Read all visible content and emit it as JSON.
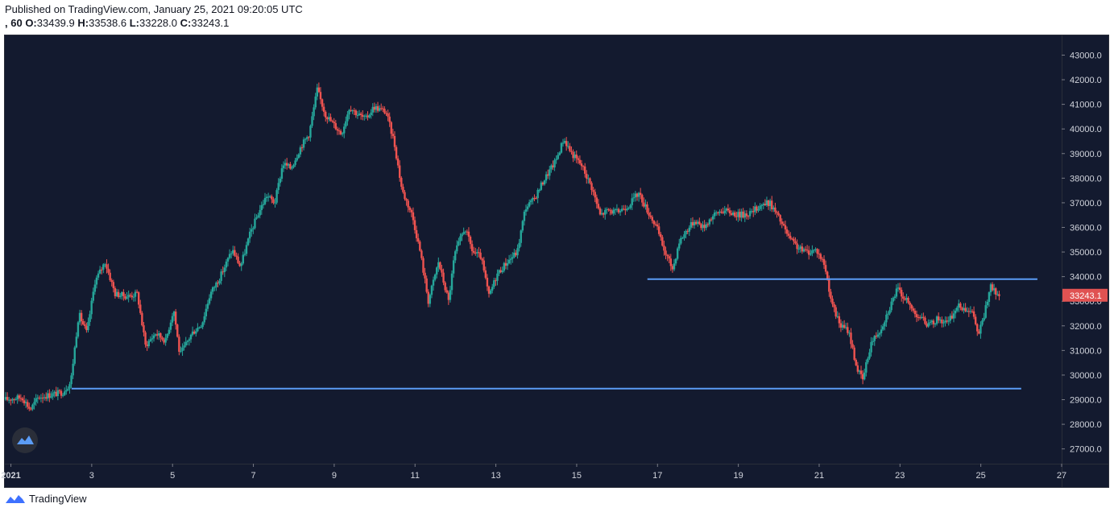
{
  "header": {
    "published": "Published on TradingView.com, January 25, 2021 09:20:05 UTC",
    "interval": ", 60",
    "o_label": "O:",
    "o_value": "33439.9",
    "h_label": "H:",
    "h_value": "33538.6",
    "l_label": "L:",
    "l_value": "33228.0",
    "c_label": "C:",
    "c_value": "33243.1"
  },
  "footer": {
    "brand": "TradingView",
    "logo_icon": "tradingview-logo-icon"
  },
  "watermark_icon": "tradingview-cloud-icon",
  "colors": {
    "background": "#131a2f",
    "up": "#26a69a",
    "down": "#ef5350",
    "support_line": "#5b9cf6",
    "axis_text": "#d1d4dc",
    "price_tag": "#e05252"
  },
  "chart_data": {
    "type": "candlestick",
    "timeframe": "60",
    "x_axis": {
      "ticks": [
        "2021",
        "3",
        "5",
        "7",
        "9",
        "11",
        "13",
        "15",
        "17",
        "19",
        "21",
        "23",
        "25",
        "27"
      ],
      "range_days": [
        0.85,
        27
      ]
    },
    "y_axis": {
      "ticks": [
        "27000.0",
        "28000.0",
        "29000.0",
        "30000.0",
        "31000.0",
        "32000.0",
        "33000.0",
        "34000.0",
        "35000.0",
        "36000.0",
        "37000.0",
        "38000.0",
        "39000.0",
        "40000.0",
        "41000.0",
        "42000.0",
        "43000.0"
      ],
      "range": [
        26400,
        43800
      ]
    },
    "last_price": "33243.1",
    "path_points": [
      [
        0.85,
        29000
      ],
      [
        1.3,
        29100
      ],
      [
        1.5,
        28600
      ],
      [
        1.7,
        29100
      ],
      [
        2.0,
        29200
      ],
      [
        2.3,
        29300
      ],
      [
        2.5,
        29700
      ],
      [
        2.7,
        32500
      ],
      [
        2.9,
        31700
      ],
      [
        3.1,
        33800
      ],
      [
        3.35,
        34600
      ],
      [
        3.6,
        33300
      ],
      [
        3.9,
        33200
      ],
      [
        4.15,
        33300
      ],
      [
        4.35,
        31200
      ],
      [
        4.6,
        31700
      ],
      [
        4.85,
        31400
      ],
      [
        5.05,
        32700
      ],
      [
        5.2,
        30800
      ],
      [
        5.5,
        31700
      ],
      [
        5.75,
        32100
      ],
      [
        5.95,
        33300
      ],
      [
        6.2,
        34000
      ],
      [
        6.5,
        35100
      ],
      [
        6.7,
        34400
      ],
      [
        6.95,
        35800
      ],
      [
        7.15,
        36600
      ],
      [
        7.35,
        37300
      ],
      [
        7.55,
        37000
      ],
      [
        7.75,
        38600
      ],
      [
        7.95,
        38400
      ],
      [
        8.2,
        39300
      ],
      [
        8.4,
        39800
      ],
      [
        8.6,
        41600
      ],
      [
        8.8,
        40600
      ],
      [
        9.0,
        40200
      ],
      [
        9.2,
        39800
      ],
      [
        9.4,
        40900
      ],
      [
        9.6,
        40600
      ],
      [
        9.8,
        40400
      ],
      [
        10.0,
        40900
      ],
      [
        10.3,
        40700
      ],
      [
        10.5,
        39500
      ],
      [
        10.7,
        37500
      ],
      [
        10.95,
        36500
      ],
      [
        11.15,
        35000
      ],
      [
        11.35,
        33000
      ],
      [
        11.6,
        34600
      ],
      [
        11.85,
        33000
      ],
      [
        12.0,
        34900
      ],
      [
        12.25,
        36000
      ],
      [
        12.45,
        35000
      ],
      [
        12.65,
        34800
      ],
      [
        12.85,
        33200
      ],
      [
        13.05,
        34100
      ],
      [
        13.3,
        34600
      ],
      [
        13.55,
        35000
      ],
      [
        13.75,
        36800
      ],
      [
        13.95,
        37100
      ],
      [
        14.2,
        37900
      ],
      [
        14.5,
        38700
      ],
      [
        14.7,
        39600
      ],
      [
        14.9,
        39000
      ],
      [
        15.15,
        38500
      ],
      [
        15.4,
        37600
      ],
      [
        15.6,
        36500
      ],
      [
        15.8,
        36700
      ],
      [
        16.0,
        36600
      ],
      [
        16.3,
        36900
      ],
      [
        16.55,
        37400
      ],
      [
        16.8,
        36600
      ],
      [
        17.0,
        36000
      ],
      [
        17.2,
        35000
      ],
      [
        17.4,
        34300
      ],
      [
        17.55,
        35400
      ],
      [
        17.75,
        35900
      ],
      [
        17.95,
        36300
      ],
      [
        18.15,
        36000
      ],
      [
        18.35,
        36400
      ],
      [
        18.6,
        36700
      ],
      [
        18.85,
        36600
      ],
      [
        19.05,
        36500
      ],
      [
        19.35,
        36600
      ],
      [
        19.55,
        36900
      ],
      [
        19.8,
        37000
      ],
      [
        20.05,
        36300
      ],
      [
        20.3,
        35500
      ],
      [
        20.55,
        35100
      ],
      [
        20.75,
        35000
      ],
      [
        20.95,
        35100
      ],
      [
        21.15,
        34500
      ],
      [
        21.35,
        32800
      ],
      [
        21.55,
        32000
      ],
      [
        21.75,
        31800
      ],
      [
        21.95,
        30300
      ],
      [
        22.1,
        29800
      ],
      [
        22.3,
        31300
      ],
      [
        22.55,
        31900
      ],
      [
        22.75,
        32700
      ],
      [
        22.95,
        33500
      ],
      [
        23.15,
        33100
      ],
      [
        23.35,
        32600
      ],
      [
        23.55,
        32300
      ],
      [
        23.75,
        32000
      ],
      [
        23.95,
        32300
      ],
      [
        24.2,
        32100
      ],
      [
        24.45,
        32800
      ],
      [
        24.7,
        32700
      ],
      [
        24.85,
        32400
      ],
      [
        24.95,
        31600
      ],
      [
        25.1,
        32400
      ],
      [
        25.25,
        33600
      ],
      [
        25.35,
        33400
      ],
      [
        25.45,
        33250
      ]
    ],
    "horizontal_lines": [
      {
        "price": 29450,
        "from_day": 2.5,
        "to_day": 26.0
      },
      {
        "price": 33900,
        "from_day": 16.75,
        "to_day": 26.4
      }
    ]
  }
}
